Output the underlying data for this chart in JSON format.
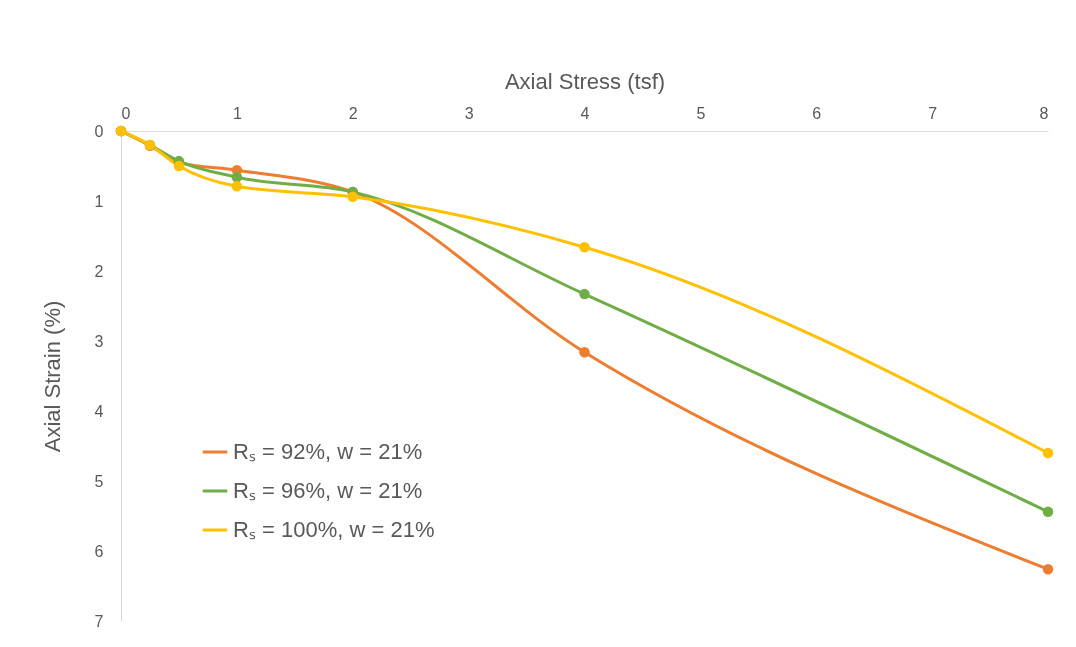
{
  "chart_data": {
    "type": "line",
    "xlabel": "Axial Stress (tsf)",
    "ylabel": "Axial Strain (%)",
    "x": [
      0,
      0.25,
      0.5,
      1,
      2,
      4,
      8
    ],
    "series": [
      {
        "name": "Rₛ = 92%, w = 21%",
        "color": "#ed7d31",
        "values": [
          0,
          0.21,
          0.45,
          0.56,
          0.87,
          3.16,
          6.26
        ]
      },
      {
        "name": "Rₛ = 96%, w = 21%",
        "color": "#70ad47",
        "values": [
          0,
          0.2,
          0.43,
          0.66,
          0.87,
          2.33,
          5.44
        ]
      },
      {
        "name": "Rₛ = 100%, w = 21%",
        "color": "#ffc000",
        "values": [
          0,
          0.2,
          0.5,
          0.79,
          0.94,
          1.66,
          4.6
        ]
      }
    ],
    "xlim": [
      0,
      8
    ],
    "xticks": [
      0,
      1,
      2,
      3,
      4,
      5,
      6,
      7,
      8
    ],
    "ylim": [
      7,
      0
    ],
    "yticks": [
      0,
      1,
      2,
      3,
      4,
      5,
      6,
      7
    ],
    "legend": "bottom left",
    "marker": "circle"
  }
}
